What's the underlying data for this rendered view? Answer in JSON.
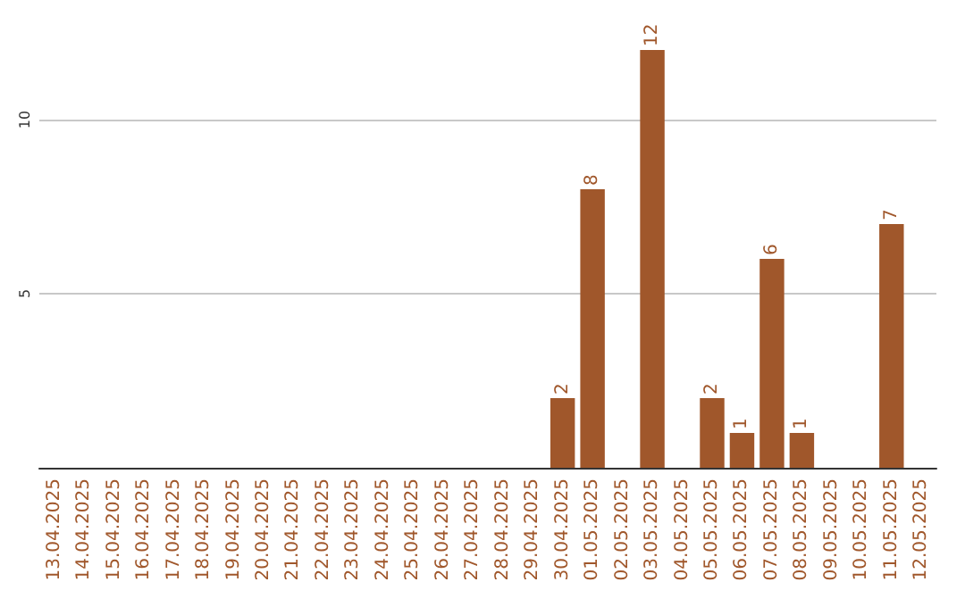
{
  "chart_data": {
    "type": "bar",
    "categories": [
      "13.04.2025",
      "14.04.2025",
      "15.04.2025",
      "16.04.2025",
      "17.04.2025",
      "18.04.2025",
      "19.04.2025",
      "20.04.2025",
      "21.04.2025",
      "22.04.2025",
      "23.04.2025",
      "24.04.2025",
      "25.04.2025",
      "26.04.2025",
      "27.04.2025",
      "28.04.2025",
      "29.04.2025",
      "30.04.2025",
      "01.05.2025",
      "02.05.2025",
      "03.05.2025",
      "04.05.2025",
      "05.05.2025",
      "06.05.2025",
      "07.05.2025",
      "08.05.2025",
      "09.05.2025",
      "10.05.2025",
      "11.05.2025",
      "12.05.2025"
    ],
    "values": [
      0,
      0,
      0,
      0,
      0,
      0,
      0,
      0,
      0,
      0,
      0,
      0,
      0,
      0,
      0,
      0,
      0,
      2,
      8,
      0,
      12,
      0,
      2,
      1,
      6,
      1,
      0,
      0,
      7,
      0
    ],
    "value_labels": [
      null,
      null,
      null,
      null,
      null,
      null,
      null,
      null,
      null,
      null,
      null,
      null,
      null,
      null,
      null,
      null,
      null,
      "2",
      "8",
      null,
      "12",
      null,
      "2",
      "1",
      "6",
      "1",
      null,
      null,
      "7",
      null
    ],
    "color": "#a0572b",
    "ylim": [
      0,
      12
    ],
    "yticks": [
      5,
      10
    ],
    "grid": "y"
  }
}
